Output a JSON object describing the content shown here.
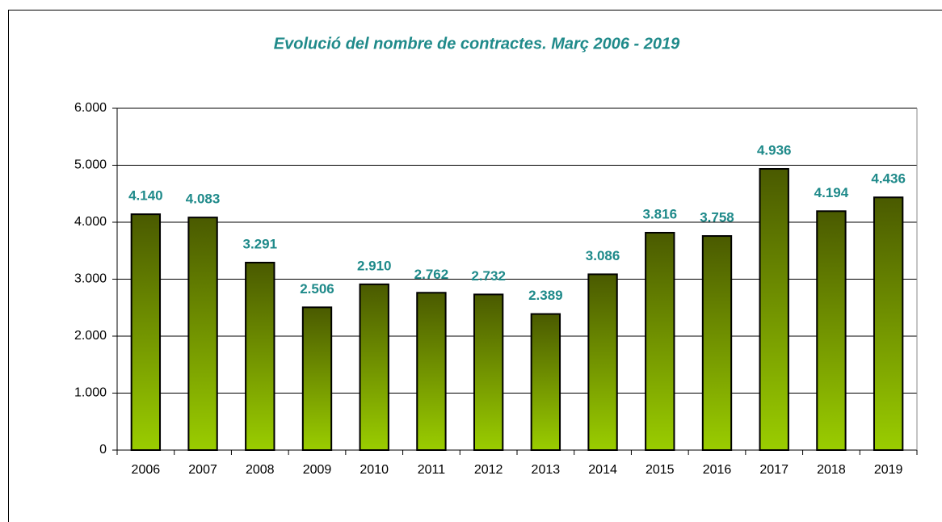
{
  "chart_data": {
    "type": "bar",
    "title": "Evolució del nombre de contractes. Març 2006 - 2019",
    "categories": [
      "2006",
      "2007",
      "2008",
      "2009",
      "2010",
      "2011",
      "2012",
      "2013",
      "2014",
      "2015",
      "2016",
      "2017",
      "2018",
      "2019"
    ],
    "values": [
      4140,
      4083,
      3291,
      2506,
      2910,
      2762,
      2732,
      2389,
      3086,
      3816,
      3758,
      4936,
      4194,
      4436
    ],
    "value_labels": [
      "4.140",
      "4.083",
      "3.291",
      "2.506",
      "2.910",
      "2.762",
      "2.732",
      "2.389",
      "3.086",
      "3.816",
      "3.758",
      "4.936",
      "4.194",
      "4.436"
    ],
    "color": "#7a9e00",
    "ylim": [
      0,
      6000
    ],
    "yticks": [
      {
        "value": 0,
        "label": "0"
      },
      {
        "value": 1000,
        "label": "1.000"
      },
      {
        "value": 2000,
        "label": "2.000"
      },
      {
        "value": 3000,
        "label": "3.000"
      },
      {
        "value": 4000,
        "label": "4.000"
      },
      {
        "value": 5000,
        "label": "5.000"
      },
      {
        "value": 6000,
        "label": "6.000"
      }
    ],
    "grid": true
  }
}
